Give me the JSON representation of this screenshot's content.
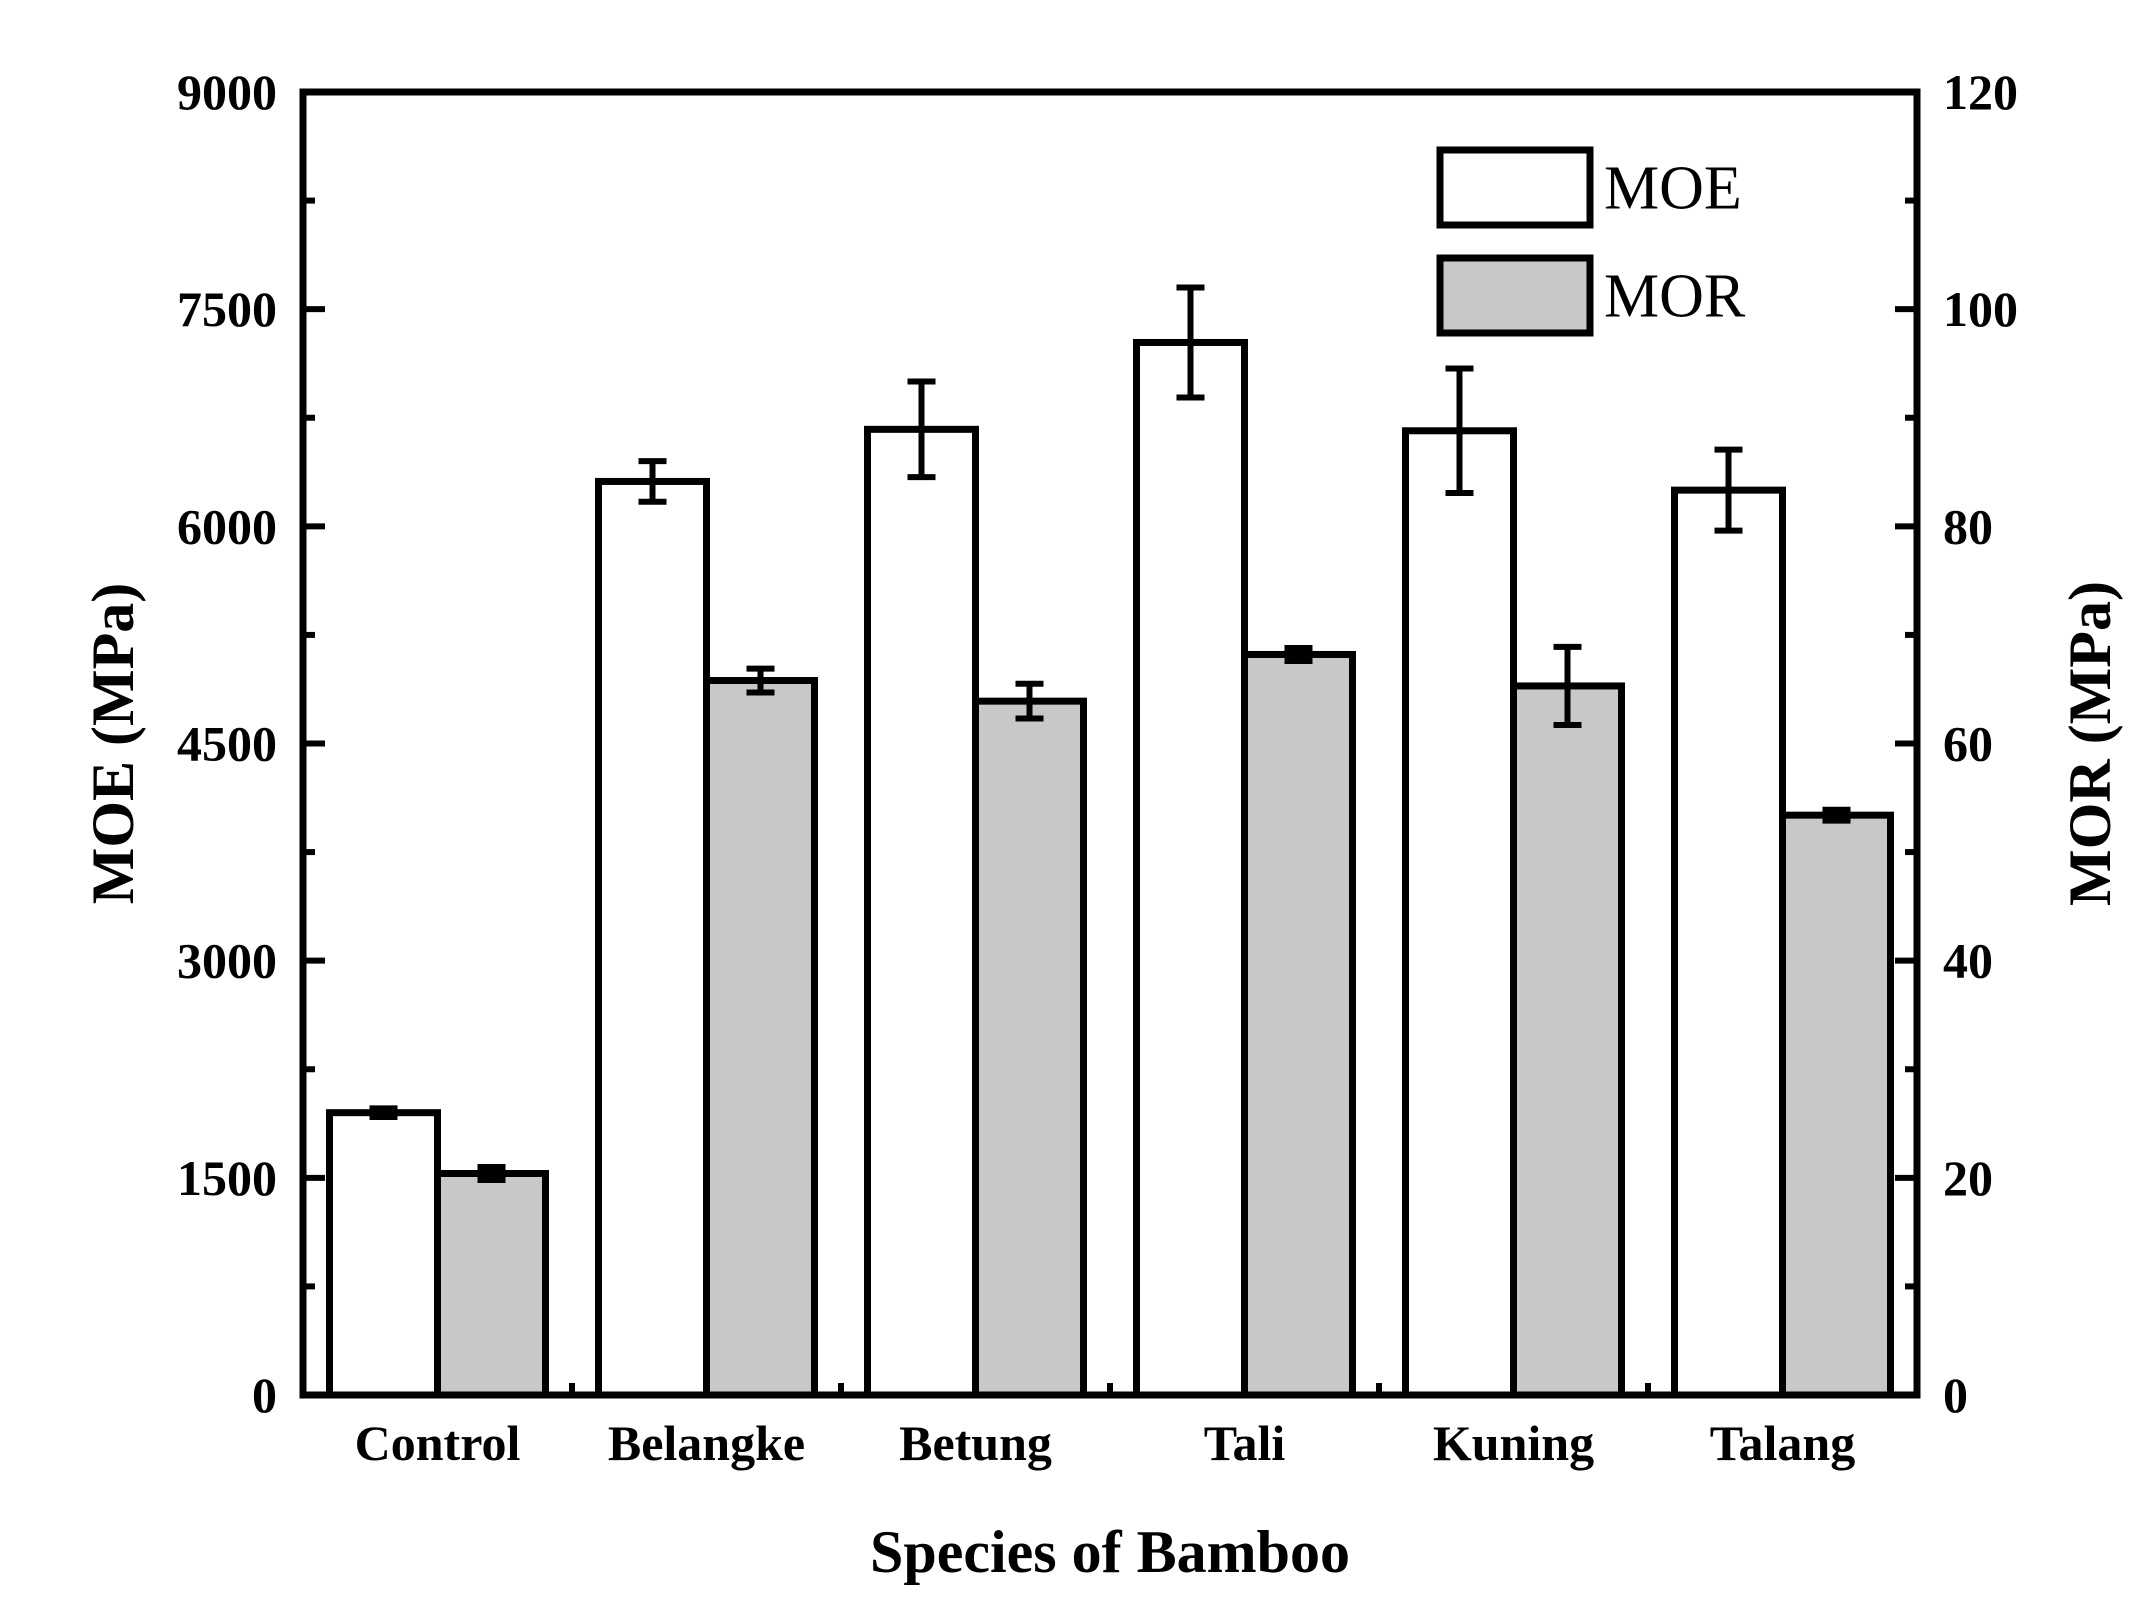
{
  "chart_data": {
    "type": "bar",
    "title": "",
    "xlabel": "Species of Bamboo",
    "ylabel": "MOE (MPa)",
    "y2label": "MOR (MPa)",
    "categories": [
      "Control",
      "Belangke",
      "Betung",
      "Tali",
      "Kuning",
      "Talang"
    ],
    "ylim": [
      0,
      9000
    ],
    "y2lim": [
      0,
      120
    ],
    "yticks": [
      "0",
      "1500",
      "3000",
      "4500",
      "6000",
      "7500",
      "9000"
    ],
    "y2ticks": [
      "0",
      "20",
      "40",
      "60",
      "80",
      "100",
      "120"
    ],
    "yticks_values": [
      0,
      1500,
      3000,
      4500,
      6000,
      7500,
      9000
    ],
    "y2ticks_values": [
      0,
      20,
      40,
      60,
      80,
      100,
      120
    ],
    "series": [
      {
        "name": "MOE",
        "axis": "left",
        "values": [
          1950,
          6310,
          6670,
          7270,
          6660,
          6250
        ],
        "errors": [
          30,
          140,
          330,
          380,
          430,
          280
        ],
        "color": "#ffffff"
      },
      {
        "name": "MOR",
        "axis": "right",
        "values": [
          20.4,
          65.8,
          63.9,
          68.2,
          65.3,
          53.4
        ],
        "errors": [
          0.6,
          1.1,
          1.6,
          0.6,
          3.6,
          0.5
        ],
        "color": "#c8c8c8"
      }
    ],
    "legend": {
      "position": "top-right",
      "entries": [
        "MOE",
        "MOR"
      ]
    },
    "grid": false
  }
}
